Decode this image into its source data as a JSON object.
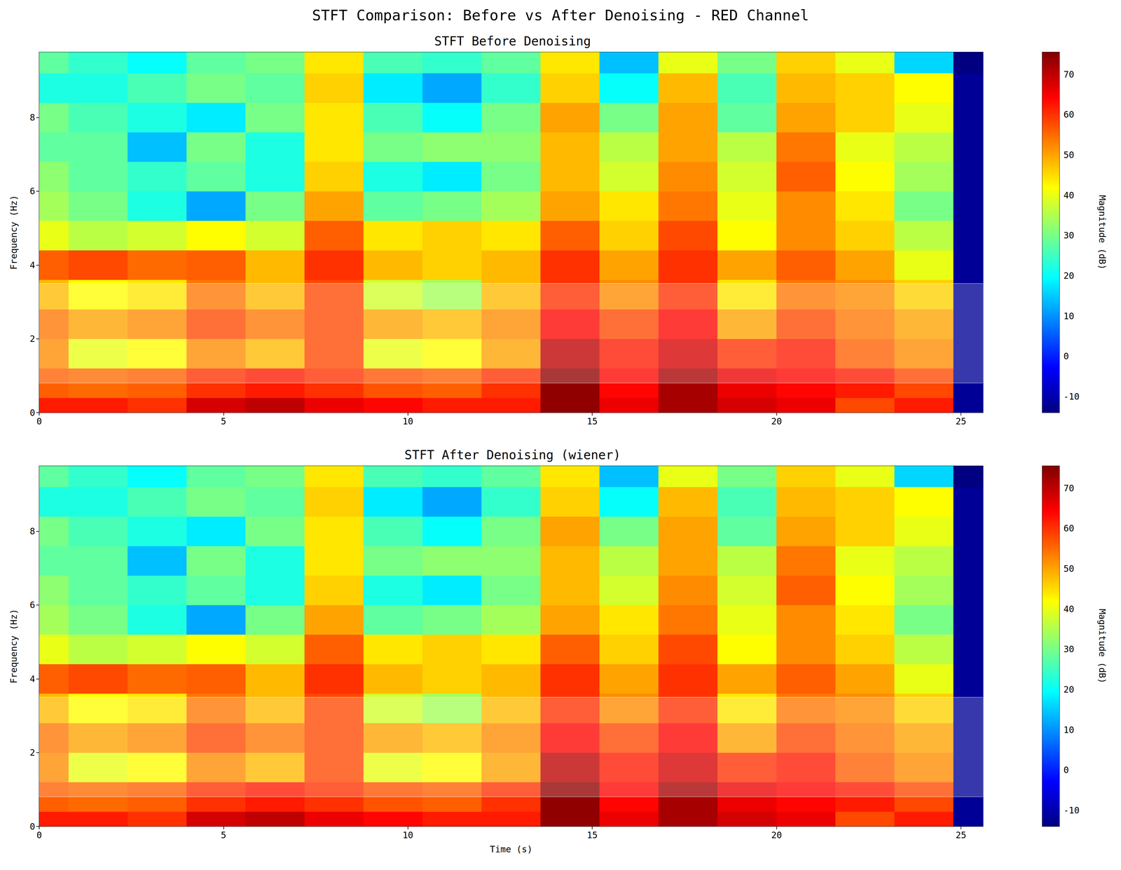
{
  "chart_data": {
    "type": "heatmap",
    "title": "STFT Comparison: Before vs After Denoising - RED Channel",
    "panels": [
      {
        "title": "STFT Before Denoising",
        "y_label": "Frequency (Hz)",
        "x": [
          0,
          1.6,
          3.2,
          4.8,
          6.4,
          8.0,
          9.6,
          11.2,
          12.8,
          14.4,
          16.0,
          17.6,
          19.2,
          20.8,
          22.4,
          24.0,
          25.6
        ],
        "y": [
          0,
          0.8,
          1.6,
          2.4,
          3.2,
          4.0,
          4.8,
          5.6,
          6.4,
          7.2,
          8.0,
          8.8,
          9.6
        ],
        "cells": [
          [
            62,
            62,
            60,
            68,
            70,
            66,
            64,
            62,
            62,
            74,
            66,
            72,
            68,
            66,
            58,
            62,
            -12
          ],
          [
            56,
            55,
            56,
            60,
            62,
            60,
            57,
            56,
            60,
            74,
            64,
            72,
            66,
            64,
            62,
            58,
            -12
          ],
          [
            52,
            40,
            42,
            52,
            48,
            58,
            40,
            42,
            50,
            70,
            62,
            68,
            60,
            62,
            56,
            52,
            -12
          ],
          [
            54,
            50,
            52,
            58,
            54,
            58,
            50,
            48,
            52,
            64,
            58,
            64,
            50,
            58,
            54,
            50,
            -12
          ],
          [
            48,
            42,
            44,
            54,
            48,
            58,
            38,
            34,
            48,
            60,
            52,
            60,
            44,
            54,
            52,
            46,
            -12
          ],
          [
            56,
            58,
            55,
            56,
            48,
            60,
            48,
            46,
            48,
            60,
            50,
            60,
            50,
            56,
            50,
            40,
            -12
          ],
          [
            40,
            36,
            38,
            42,
            38,
            56,
            44,
            46,
            44,
            56,
            46,
            58,
            42,
            52,
            46,
            36,
            -12
          ],
          [
            34,
            30,
            22,
            12,
            30,
            50,
            28,
            30,
            34,
            50,
            44,
            54,
            40,
            52,
            44,
            30,
            -12
          ],
          [
            32,
            28,
            24,
            28,
            22,
            46,
            22,
            18,
            30,
            48,
            38,
            52,
            38,
            56,
            42,
            34,
            -12
          ],
          [
            28,
            28,
            14,
            30,
            22,
            44,
            30,
            32,
            32,
            48,
            36,
            50,
            36,
            54,
            40,
            36,
            -12
          ],
          [
            30,
            26,
            22,
            18,
            30,
            44,
            26,
            20,
            30,
            50,
            30,
            50,
            28,
            50,
            46,
            40,
            -12
          ],
          [
            22,
            22,
            26,
            30,
            28,
            46,
            18,
            12,
            24,
            46,
            20,
            48,
            26,
            48,
            46,
            42,
            -12
          ],
          [
            28,
            24,
            20,
            28,
            30,
            44,
            26,
            24,
            28,
            44,
            14,
            40,
            30,
            46,
            40,
            16,
            -14
          ]
        ],
        "xlim": [
          0,
          25.6
        ],
        "xticks": [
          0,
          5,
          10,
          15,
          20,
          25
        ],
        "ylim": [
          0,
          9.77
        ],
        "yticks": [
          0,
          2,
          4,
          6,
          8
        ],
        "highlight_band": [
          0.8,
          3.5
        ],
        "colorbar": {
          "label": "Magnitude (dB)",
          "range": [
            -14,
            75.5
          ],
          "ticks": [
            -10,
            0,
            10,
            20,
            30,
            40,
            50,
            60,
            70
          ]
        }
      },
      {
        "title": "STFT After Denoising (wiener)",
        "x_label": "Time (s)",
        "y_label": "Frequency (Hz)",
        "x": [
          0,
          1.6,
          3.2,
          4.8,
          6.4,
          8.0,
          9.6,
          11.2,
          12.8,
          14.4,
          16.0,
          17.6,
          19.2,
          20.8,
          22.4,
          24.0,
          25.6
        ],
        "y": [
          0,
          0.8,
          1.6,
          2.4,
          3.2,
          4.0,
          4.8,
          5.6,
          6.4,
          7.2,
          8.0,
          8.8,
          9.6
        ],
        "cells": [
          [
            62,
            62,
            60,
            68,
            70,
            66,
            64,
            62,
            62,
            74,
            66,
            72,
            68,
            66,
            58,
            62,
            -12
          ],
          [
            56,
            55,
            56,
            60,
            62,
            60,
            57,
            56,
            60,
            74,
            64,
            72,
            66,
            64,
            62,
            58,
            -12
          ],
          [
            52,
            40,
            42,
            52,
            48,
            58,
            40,
            42,
            50,
            70,
            62,
            68,
            60,
            62,
            56,
            52,
            -12
          ],
          [
            54,
            50,
            52,
            58,
            54,
            58,
            50,
            48,
            52,
            64,
            58,
            64,
            50,
            58,
            54,
            50,
            -12
          ],
          [
            48,
            42,
            44,
            54,
            48,
            58,
            38,
            34,
            48,
            60,
            52,
            60,
            44,
            54,
            52,
            46,
            -12
          ],
          [
            56,
            58,
            55,
            56,
            48,
            60,
            48,
            46,
            48,
            60,
            50,
            60,
            50,
            56,
            50,
            40,
            -12
          ],
          [
            40,
            36,
            38,
            42,
            38,
            56,
            44,
            46,
            44,
            56,
            46,
            58,
            42,
            52,
            46,
            36,
            -12
          ],
          [
            34,
            30,
            22,
            12,
            30,
            50,
            28,
            30,
            34,
            50,
            44,
            54,
            40,
            52,
            44,
            30,
            -12
          ],
          [
            32,
            28,
            24,
            28,
            22,
            46,
            22,
            18,
            30,
            48,
            38,
            52,
            38,
            56,
            42,
            34,
            -12
          ],
          [
            28,
            28,
            14,
            30,
            22,
            44,
            30,
            32,
            32,
            48,
            36,
            50,
            36,
            54,
            40,
            36,
            -12
          ],
          [
            30,
            26,
            22,
            18,
            30,
            44,
            26,
            20,
            30,
            50,
            30,
            50,
            28,
            50,
            46,
            40,
            -12
          ],
          [
            22,
            22,
            26,
            30,
            28,
            46,
            18,
            12,
            24,
            46,
            20,
            48,
            26,
            48,
            46,
            42,
            -12
          ],
          [
            28,
            24,
            20,
            28,
            30,
            44,
            26,
            24,
            28,
            44,
            14,
            40,
            30,
            46,
            40,
            16,
            -14
          ]
        ],
        "xlim": [
          0,
          25.6
        ],
        "xticks": [
          0,
          5,
          10,
          15,
          20,
          25
        ],
        "ylim": [
          0,
          9.77
        ],
        "yticks": [
          0,
          2,
          4,
          6,
          8
        ],
        "highlight_band": [
          0.8,
          3.5
        ],
        "colorbar": {
          "label": "Magnitude (dB)",
          "range": [
            -14,
            75.5
          ],
          "ticks": [
            -10,
            0,
            10,
            20,
            30,
            40,
            50,
            60,
            70
          ]
        }
      }
    ]
  }
}
